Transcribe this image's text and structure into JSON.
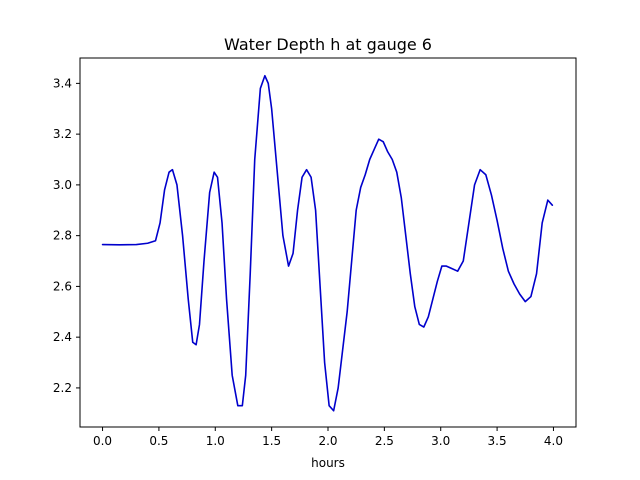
{
  "chart_data": {
    "type": "line",
    "title": "Water Depth h at gauge 6",
    "xlabel": "hours",
    "ylabel": "",
    "xlim": [
      -0.2,
      4.2
    ],
    "ylim": [
      2.046,
      3.5
    ],
    "xticks": [
      0.0,
      0.5,
      1.0,
      1.5,
      2.0,
      2.5,
      3.0,
      3.5,
      4.0
    ],
    "xtick_labels": [
      "0.0",
      "0.5",
      "1.0",
      "1.5",
      "2.0",
      "2.5",
      "3.0",
      "3.5",
      "4.0"
    ],
    "yticks": [
      2.2,
      2.4,
      2.6,
      2.8,
      3.0,
      3.2,
      3.4
    ],
    "ytick_labels": [
      "2.2",
      "2.4",
      "2.6",
      "2.8",
      "3.0",
      "3.2",
      "3.4"
    ],
    "grid": false,
    "series": [
      {
        "color": "#0000cc",
        "x": [
          0.0,
          0.15,
          0.3,
          0.4,
          0.47,
          0.51,
          0.55,
          0.59,
          0.62,
          0.66,
          0.71,
          0.76,
          0.8,
          0.83,
          0.86,
          0.9,
          0.95,
          0.99,
          1.02,
          1.06,
          1.1,
          1.15,
          1.2,
          1.24,
          1.27,
          1.31,
          1.35,
          1.4,
          1.44,
          1.47,
          1.5,
          1.55,
          1.6,
          1.65,
          1.69,
          1.73,
          1.77,
          1.81,
          1.85,
          1.89,
          1.93,
          1.97,
          2.01,
          2.05,
          2.09,
          2.13,
          2.17,
          2.21,
          2.25,
          2.29,
          2.33,
          2.37,
          2.41,
          2.45,
          2.49,
          2.53,
          2.57,
          2.61,
          2.65,
          2.69,
          2.73,
          2.77,
          2.81,
          2.85,
          2.89,
          2.93,
          2.97,
          3.01,
          3.05,
          3.1,
          3.15,
          3.2,
          3.25,
          3.3,
          3.35,
          3.4,
          3.45,
          3.5,
          3.55,
          3.6,
          3.65,
          3.7,
          3.75,
          3.8,
          3.85,
          3.9,
          3.95,
          3.99
        ],
        "values": [
          2.765,
          2.764,
          2.765,
          2.77,
          2.78,
          2.85,
          2.98,
          3.05,
          3.06,
          3.0,
          2.8,
          2.55,
          2.38,
          2.37,
          2.45,
          2.7,
          2.97,
          3.05,
          3.03,
          2.85,
          2.55,
          2.25,
          2.13,
          2.13,
          2.25,
          2.65,
          3.1,
          3.38,
          3.43,
          3.4,
          3.3,
          3.05,
          2.8,
          2.68,
          2.73,
          2.9,
          3.03,
          3.06,
          3.03,
          2.9,
          2.6,
          2.3,
          2.13,
          2.11,
          2.2,
          2.35,
          2.5,
          2.7,
          2.9,
          2.99,
          3.04,
          3.1,
          3.14,
          3.18,
          3.17,
          3.13,
          3.1,
          3.05,
          2.95,
          2.8,
          2.65,
          2.52,
          2.45,
          2.44,
          2.48,
          2.55,
          2.62,
          2.68,
          2.68,
          2.67,
          2.66,
          2.7,
          2.85,
          3.0,
          3.06,
          3.04,
          2.96,
          2.86,
          2.75,
          2.66,
          2.61,
          2.57,
          2.54,
          2.56,
          2.65,
          2.85,
          2.94,
          2.92
        ]
      }
    ]
  }
}
